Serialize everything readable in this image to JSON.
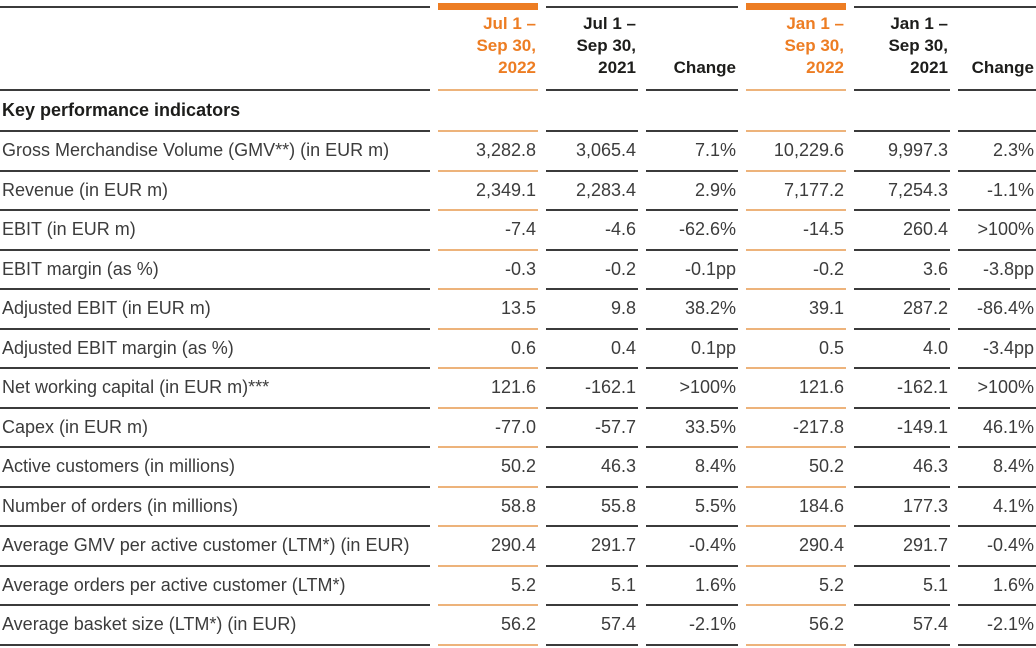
{
  "colors": {
    "accent_orange": "#ED7D23",
    "separator_orange": "#EDB37B",
    "separator_dark": "#3B3B3B",
    "header_text": "#1D1D1B",
    "body_text": "#3C3C3C"
  },
  "table": {
    "section_header": "Key performance indicators",
    "columns": [
      {
        "lines": [
          "Jul 1 –",
          "Sep 30,",
          "2022"
        ],
        "highlight": true
      },
      {
        "lines": [
          "Jul 1 –",
          "Sep 30,",
          "2021"
        ],
        "highlight": false
      },
      {
        "lines": [
          "Change"
        ],
        "highlight": false
      },
      {
        "lines": [
          "Jan 1 –",
          "Sep 30,",
          "2022"
        ],
        "highlight": true
      },
      {
        "lines": [
          "Jan 1 –",
          "Sep 30,",
          "2021"
        ],
        "highlight": false
      },
      {
        "lines": [
          "Change"
        ],
        "highlight": false
      }
    ],
    "rows": [
      {
        "label": "Gross Merchandise Volume (GMV**) (in EUR m)",
        "values": [
          "3,282.8",
          "3,065.4",
          "7.1%",
          "10,229.6",
          "9,997.3",
          "2.3%"
        ]
      },
      {
        "label": "Revenue (in EUR m)",
        "values": [
          "2,349.1",
          "2,283.4",
          "2.9%",
          "7,177.2",
          "7,254.3",
          "-1.1%"
        ]
      },
      {
        "label": "EBIT (in EUR m)",
        "values": [
          "-7.4",
          "-4.6",
          "-62.6%",
          "-14.5",
          "260.4",
          ">100%"
        ]
      },
      {
        "label": "EBIT margin (as %)",
        "values": [
          "-0.3",
          "-0.2",
          "-0.1pp",
          "-0.2",
          "3.6",
          "-3.8pp"
        ]
      },
      {
        "label": "Adjusted EBIT (in EUR m)",
        "values": [
          "13.5",
          "9.8",
          "38.2%",
          "39.1",
          "287.2",
          "-86.4%"
        ]
      },
      {
        "label": "Adjusted EBIT margin (as %)",
        "values": [
          "0.6",
          "0.4",
          "0.1pp",
          "0.5",
          "4.0",
          "-3.4pp"
        ]
      },
      {
        "label": "Net working capital (in EUR m)***",
        "values": [
          "121.6",
          "-162.1",
          ">100%",
          "121.6",
          "-162.1",
          ">100%"
        ]
      },
      {
        "label": "Capex (in EUR m)",
        "values": [
          "-77.0",
          "-57.7",
          "33.5%",
          "-217.8",
          "-149.1",
          "46.1%"
        ]
      },
      {
        "label": "Active customers (in millions)",
        "values": [
          "50.2",
          "46.3",
          "8.4%",
          "50.2",
          "46.3",
          "8.4%"
        ]
      },
      {
        "label": "Number of orders (in millions)",
        "values": [
          "58.8",
          "55.8",
          "5.5%",
          "184.6",
          "177.3",
          "4.1%"
        ]
      },
      {
        "label": "Average GMV per active customer (LTM*) (in EUR)",
        "values": [
          "290.4",
          "291.7",
          "-0.4%",
          "290.4",
          "291.7",
          "-0.4%"
        ]
      },
      {
        "label": "Average orders per active customer (LTM*)",
        "values": [
          "5.2",
          "5.1",
          "1.6%",
          "5.2",
          "5.1",
          "1.6%"
        ]
      },
      {
        "label": "Average basket size (LTM*) (in EUR)",
        "values": [
          "56.2",
          "57.4",
          "-2.1%",
          "56.2",
          "57.4",
          "-2.1%"
        ]
      }
    ]
  }
}
